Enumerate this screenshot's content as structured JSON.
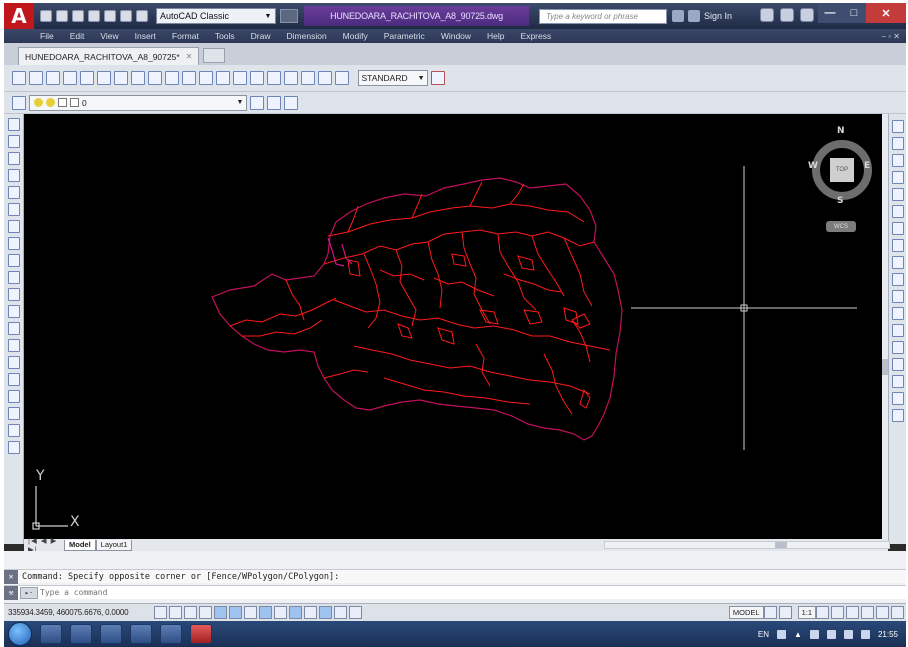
{
  "title_bar": {
    "app_logo": "A",
    "workspace": "AutoCAD Classic",
    "document_title": "HUNEDOARA_RACHITOVA_A8_90725.dwg",
    "search_placeholder": "Type a keyword or phrase",
    "sign_in": "Sign In"
  },
  "menu": {
    "items": [
      "File",
      "Edit",
      "View",
      "Insert",
      "Format",
      "Tools",
      "Draw",
      "Dimension",
      "Modify",
      "Parametric",
      "Window",
      "Help",
      "Express"
    ]
  },
  "file_tab": {
    "label": "HUNEDOARA_RACHITOVA_A8_90725*"
  },
  "toolbar": {
    "style_select": "STANDARD",
    "layer_select": "0"
  },
  "viewcube": {
    "north": "N",
    "south": "S",
    "east": "E",
    "west": "W",
    "top": "TOP",
    "wcs": "WCS"
  },
  "ucs": {
    "x_label": "X",
    "y_label": "Y"
  },
  "layout_tabs": [
    "Model",
    "Layout1"
  ],
  "command": {
    "history": "Command: Specify opposite corner or [Fence/WPolygon/CPolygon]:",
    "input_placeholder": "Type a command"
  },
  "status_bar": {
    "coordinates": "335934.3459, 460075.6676, 0.0000",
    "model": "MODEL",
    "annotation_scale": "1:1"
  },
  "taskbar": {
    "language": "EN",
    "clock": "21:55"
  },
  "colors": {
    "drawing_background": "#000000",
    "boundary_outline": "#c0105c",
    "contour_lines": "#ff1a1a",
    "crosshair": "#d0d0d0"
  }
}
